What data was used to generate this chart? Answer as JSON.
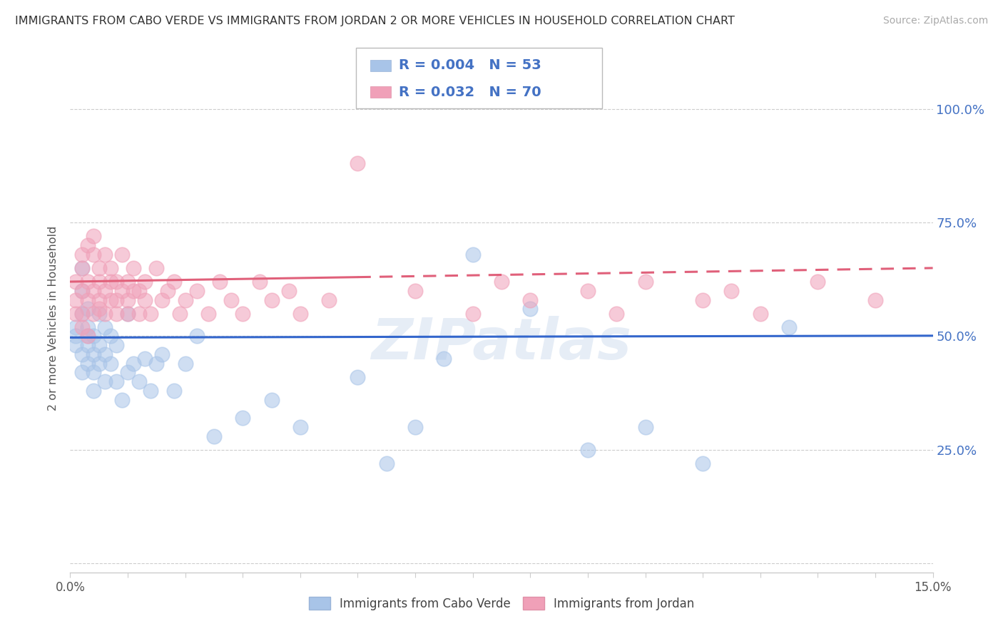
{
  "title": "IMMIGRANTS FROM CABO VERDE VS IMMIGRANTS FROM JORDAN 2 OR MORE VEHICLES IN HOUSEHOLD CORRELATION CHART",
  "source": "Source: ZipAtlas.com",
  "ylabel": "2 or more Vehicles in Household",
  "xlim": [
    0.0,
    0.15
  ],
  "ylim": [
    -0.02,
    1.1
  ],
  "ytick_positions": [
    0.0,
    0.25,
    0.5,
    0.75,
    1.0
  ],
  "ytick_labels": [
    "",
    "25.0%",
    "50.0%",
    "75.0%",
    "100.0%"
  ],
  "cabo_verde_color": "#a8c4e8",
  "jordan_color": "#f0a0b8",
  "cabo_verde_line_color": "#3366cc",
  "jordan_line_color": "#e0607a",
  "cabo_verde_R": 0.004,
  "cabo_verde_N": 53,
  "jordan_R": 0.032,
  "jordan_N": 70,
  "legend_label_cabo": "Immigrants from Cabo Verde",
  "legend_label_jordan": "Immigrants from Jordan",
  "watermark": "ZIPatlas",
  "cabo_verde_x": [
    0.001,
    0.001,
    0.001,
    0.002,
    0.002,
    0.002,
    0.002,
    0.002,
    0.003,
    0.003,
    0.003,
    0.003,
    0.003,
    0.004,
    0.004,
    0.004,
    0.004,
    0.005,
    0.005,
    0.005,
    0.006,
    0.006,
    0.006,
    0.007,
    0.007,
    0.008,
    0.008,
    0.009,
    0.01,
    0.01,
    0.011,
    0.012,
    0.013,
    0.014,
    0.015,
    0.016,
    0.018,
    0.02,
    0.022,
    0.025,
    0.03,
    0.035,
    0.04,
    0.05,
    0.055,
    0.06,
    0.065,
    0.07,
    0.08,
    0.09,
    0.1,
    0.11,
    0.125
  ],
  "cabo_verde_y": [
    0.5,
    0.52,
    0.48,
    0.55,
    0.46,
    0.6,
    0.65,
    0.42,
    0.5,
    0.48,
    0.44,
    0.52,
    0.56,
    0.42,
    0.38,
    0.46,
    0.5,
    0.55,
    0.44,
    0.48,
    0.4,
    0.46,
    0.52,
    0.44,
    0.5,
    0.4,
    0.48,
    0.36,
    0.55,
    0.42,
    0.44,
    0.4,
    0.45,
    0.38,
    0.44,
    0.46,
    0.38,
    0.44,
    0.5,
    0.28,
    0.32,
    0.36,
    0.3,
    0.41,
    0.22,
    0.3,
    0.45,
    0.68,
    0.56,
    0.25,
    0.3,
    0.22,
    0.52
  ],
  "jordan_x": [
    0.001,
    0.001,
    0.001,
    0.002,
    0.002,
    0.002,
    0.002,
    0.002,
    0.003,
    0.003,
    0.003,
    0.003,
    0.004,
    0.004,
    0.004,
    0.004,
    0.005,
    0.005,
    0.005,
    0.005,
    0.006,
    0.006,
    0.006,
    0.007,
    0.007,
    0.007,
    0.008,
    0.008,
    0.008,
    0.009,
    0.009,
    0.01,
    0.01,
    0.01,
    0.011,
    0.011,
    0.012,
    0.012,
    0.013,
    0.013,
    0.014,
    0.015,
    0.016,
    0.017,
    0.018,
    0.019,
    0.02,
    0.022,
    0.024,
    0.026,
    0.028,
    0.03,
    0.033,
    0.035,
    0.038,
    0.04,
    0.045,
    0.05,
    0.06,
    0.07,
    0.075,
    0.08,
    0.09,
    0.095,
    0.1,
    0.11,
    0.115,
    0.12,
    0.13,
    0.14
  ],
  "jordan_y": [
    0.58,
    0.62,
    0.55,
    0.6,
    0.65,
    0.52,
    0.55,
    0.68,
    0.58,
    0.62,
    0.5,
    0.7,
    0.55,
    0.6,
    0.68,
    0.72,
    0.56,
    0.62,
    0.58,
    0.65,
    0.6,
    0.55,
    0.68,
    0.62,
    0.58,
    0.65,
    0.58,
    0.62,
    0.55,
    0.6,
    0.68,
    0.55,
    0.62,
    0.58,
    0.6,
    0.65,
    0.55,
    0.6,
    0.58,
    0.62,
    0.55,
    0.65,
    0.58,
    0.6,
    0.62,
    0.55,
    0.58,
    0.6,
    0.55,
    0.62,
    0.58,
    0.55,
    0.62,
    0.58,
    0.6,
    0.55,
    0.58,
    0.88,
    0.6,
    0.55,
    0.62,
    0.58,
    0.6,
    0.55,
    0.62,
    0.58,
    0.6,
    0.55,
    0.62,
    0.58
  ]
}
